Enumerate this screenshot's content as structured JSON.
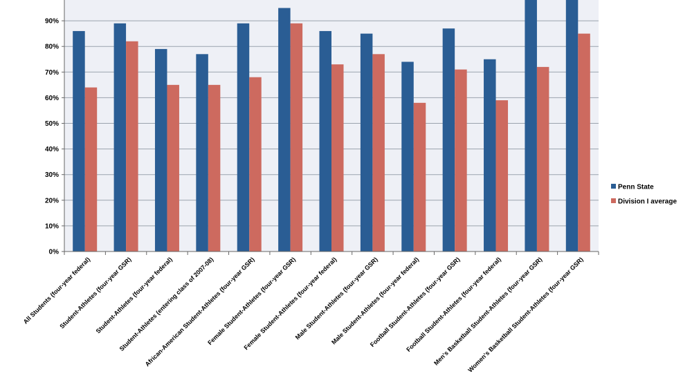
{
  "chart_data": {
    "type": "bar",
    "title": "",
    "xlabel": "",
    "ylabel": "",
    "ylim": [
      0,
      100
    ],
    "yticks": [
      "0%",
      "10%",
      "20%",
      "30%",
      "40%",
      "50%",
      "60%",
      "70%",
      "80%",
      "90%"
    ],
    "grid": true,
    "legend_position": "right",
    "categories": [
      "All Students (four-year federal)",
      "Student-Athletes (four-year GSR)",
      "Student-Athletes (four-year federal)",
      "Student-Athletes (entering class of 2007-08)",
      "African-American Student-Athletes (four-year GSR)",
      "Female Student-Athletes (four-year GSR)",
      "Female Student-Athletes (four-year federal)",
      "Male Student-Athletes (four-year GSR)",
      "Male Student-Athletes (four-year federal)",
      "Football Student-Athletes (four-year GSR)",
      "Football Student-Athletes (four-year federal)",
      "Men's Basketball Student-Athletes (four-year GSR)",
      "Women's Basketball Student-Athletes (four-year GSR)"
    ],
    "series": [
      {
        "name": "Penn State",
        "color": "#2a5d94",
        "values": [
          86,
          89,
          79,
          77,
          89,
          95,
          86,
          85,
          74,
          87,
          75,
          100,
          100
        ]
      },
      {
        "name": "Division I average",
        "color": "#cd6a5f",
        "values": [
          64,
          82,
          65,
          65,
          68,
          89,
          73,
          77,
          58,
          71,
          59,
          72,
          85
        ]
      }
    ],
    "colors": {
      "plot_background": "#eef0f6",
      "gridline": "#9aa3ad",
      "axis": "#666666"
    }
  }
}
